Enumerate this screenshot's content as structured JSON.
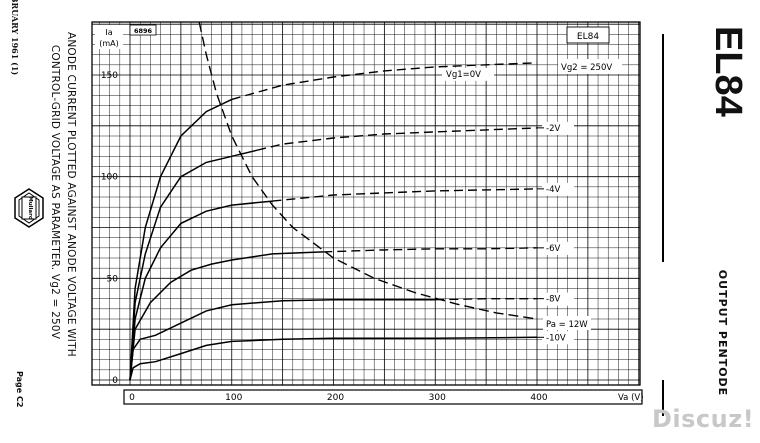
{
  "left_margin": {
    "issue": "FEBRUARY 1961 (1)",
    "page": "Page C2",
    "logo_text": "Mullard"
  },
  "caption": {
    "line1": "ANODE CURRENT PLOTTED AGAINST ANODE VOLTAGE WITH",
    "line2": "CONTROL-GRID VOLTAGE AS PARAMETER. Vg2 = 250V"
  },
  "right_margin": {
    "type_no": "EL84",
    "description": "OUTPUT PENTODE"
  },
  "watermark": "Discuz!",
  "chart_data": {
    "type": "line",
    "title": "EL84",
    "chart_id": "6896",
    "xlabel": "Va (V)",
    "ylabel": "Ia (mA)",
    "xlim": [
      0,
      400
    ],
    "ylim": [
      0,
      160
    ],
    "x_ticks": [
      0,
      100,
      200,
      300,
      400
    ],
    "y_ticks": [
      0,
      50,
      100,
      150
    ],
    "grid": true,
    "annotations": {
      "vg2": "Vg2 = 250V",
      "pa": "Pa = 12W"
    },
    "series": [
      {
        "name": "Vg1=0V",
        "solid_until": 100,
        "values": [
          [
            0,
            0
          ],
          [
            5,
            45
          ],
          [
            15,
            75
          ],
          [
            30,
            100
          ],
          [
            50,
            120
          ],
          [
            75,
            132
          ],
          [
            100,
            138
          ],
          [
            150,
            145
          ],
          [
            200,
            149
          ],
          [
            250,
            152
          ],
          [
            300,
            154
          ],
          [
            350,
            155
          ],
          [
            400,
            156
          ]
        ]
      },
      {
        "name": "-2V",
        "solid_until": 125,
        "values": [
          [
            0,
            0
          ],
          [
            5,
            38
          ],
          [
            15,
            62
          ],
          [
            30,
            85
          ],
          [
            50,
            100
          ],
          [
            75,
            107
          ],
          [
            100,
            110
          ],
          [
            125,
            113
          ],
          [
            150,
            116
          ],
          [
            200,
            119
          ],
          [
            250,
            121
          ],
          [
            300,
            122
          ],
          [
            350,
            123
          ],
          [
            400,
            124
          ]
        ]
      },
      {
        "name": "-4V",
        "solid_until": 140,
        "values": [
          [
            0,
            0
          ],
          [
            5,
            30
          ],
          [
            15,
            50
          ],
          [
            30,
            65
          ],
          [
            50,
            77
          ],
          [
            75,
            83
          ],
          [
            100,
            86
          ],
          [
            140,
            88
          ],
          [
            200,
            91
          ],
          [
            250,
            92
          ],
          [
            300,
            93
          ],
          [
            350,
            93.5
          ],
          [
            400,
            94
          ]
        ]
      },
      {
        "name": "-6V",
        "solid_until": 190,
        "values": [
          [
            0,
            0
          ],
          [
            5,
            25
          ],
          [
            20,
            38
          ],
          [
            40,
            48
          ],
          [
            60,
            54
          ],
          [
            80,
            57
          ],
          [
            100,
            59
          ],
          [
            140,
            62
          ],
          [
            190,
            63
          ],
          [
            250,
            64
          ],
          [
            300,
            64.5
          ],
          [
            350,
            64.5
          ],
          [
            400,
            65
          ]
        ]
      },
      {
        "name": "-8V",
        "solid_until": 300,
        "values": [
          [
            0,
            0
          ],
          [
            3,
            15
          ],
          [
            10,
            20
          ],
          [
            25,
            22
          ],
          [
            50,
            28
          ],
          [
            75,
            34
          ],
          [
            100,
            37
          ],
          [
            150,
            39
          ],
          [
            200,
            39.5
          ],
          [
            300,
            39.5
          ],
          [
            350,
            40
          ],
          [
            400,
            40
          ]
        ]
      },
      {
        "name": "-10V",
        "solid_until": 400,
        "values": [
          [
            0,
            0
          ],
          [
            3,
            6
          ],
          [
            10,
            8
          ],
          [
            25,
            9
          ],
          [
            50,
            13
          ],
          [
            75,
            17
          ],
          [
            100,
            19
          ],
          [
            150,
            20
          ],
          [
            200,
            20.5
          ],
          [
            300,
            20.5
          ],
          [
            400,
            21
          ]
        ]
      }
    ],
    "pa_curve": {
      "name": "Pa = 12W",
      "values": [
        [
          68,
          176
        ],
        [
          75,
          160
        ],
        [
          85,
          141
        ],
        [
          100,
          120
        ],
        [
          120,
          100
        ],
        [
          140,
          86
        ],
        [
          160,
          75
        ],
        [
          200,
          60
        ],
        [
          240,
          50
        ],
        [
          280,
          43
        ],
        [
          320,
          37.5
        ],
        [
          360,
          33
        ],
        [
          400,
          30
        ]
      ]
    }
  }
}
